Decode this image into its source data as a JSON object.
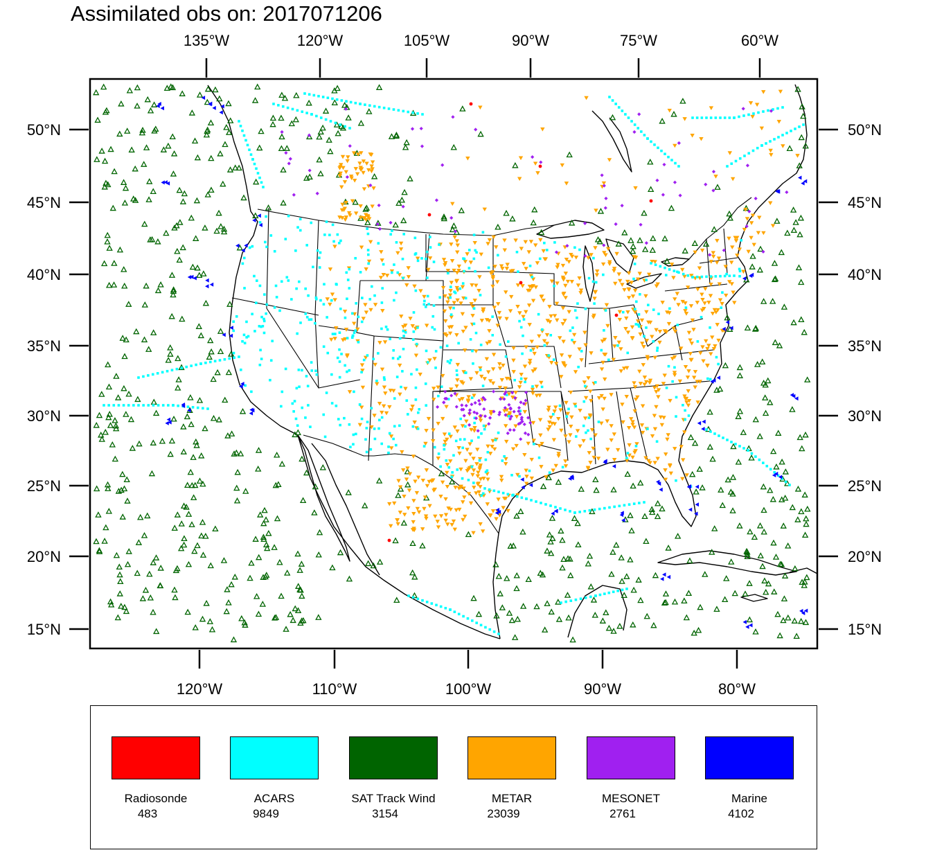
{
  "title": "Assimilated obs on: 2017071206",
  "axes": {
    "top_lon_labels": [
      "135°W",
      "120°W",
      "105°W",
      "90°W",
      "75°W",
      "60°W"
    ],
    "bottom_lon_labels": [
      "120°W",
      "110°W",
      "100°W",
      "90°W",
      "80°W"
    ],
    "left_lat_labels": [
      "50°N",
      "45°N",
      "40°N",
      "35°N",
      "30°N",
      "25°N",
      "20°N",
      "15°N"
    ],
    "right_lat_labels": [
      "50°N",
      "45°N",
      "40°N",
      "35°N",
      "30°N",
      "25°N",
      "20°N",
      "15°N"
    ]
  },
  "legend": {
    "items": [
      {
        "name": "Radiosonde",
        "count": "483",
        "color": "#ff0000"
      },
      {
        "name": "ACARS",
        "count": "9849",
        "color": "#00ffff"
      },
      {
        "name": "SAT Track Wind",
        "count": "3154",
        "color": "#006400"
      },
      {
        "name": "METAR",
        "count": "23039",
        "color": "#ffa500"
      },
      {
        "name": "MESONET",
        "count": "2761",
        "color": "#a020f0"
      },
      {
        "name": "Marine",
        "count": "4102",
        "color": "#0000ff"
      }
    ]
  },
  "colors": {
    "radiosonde": "#ff0000",
    "acars": "#00ffff",
    "sat_track_wind": "#006400",
    "metar": "#ffa500",
    "mesonet": "#a020f0",
    "marine": "#0000ff"
  }
}
